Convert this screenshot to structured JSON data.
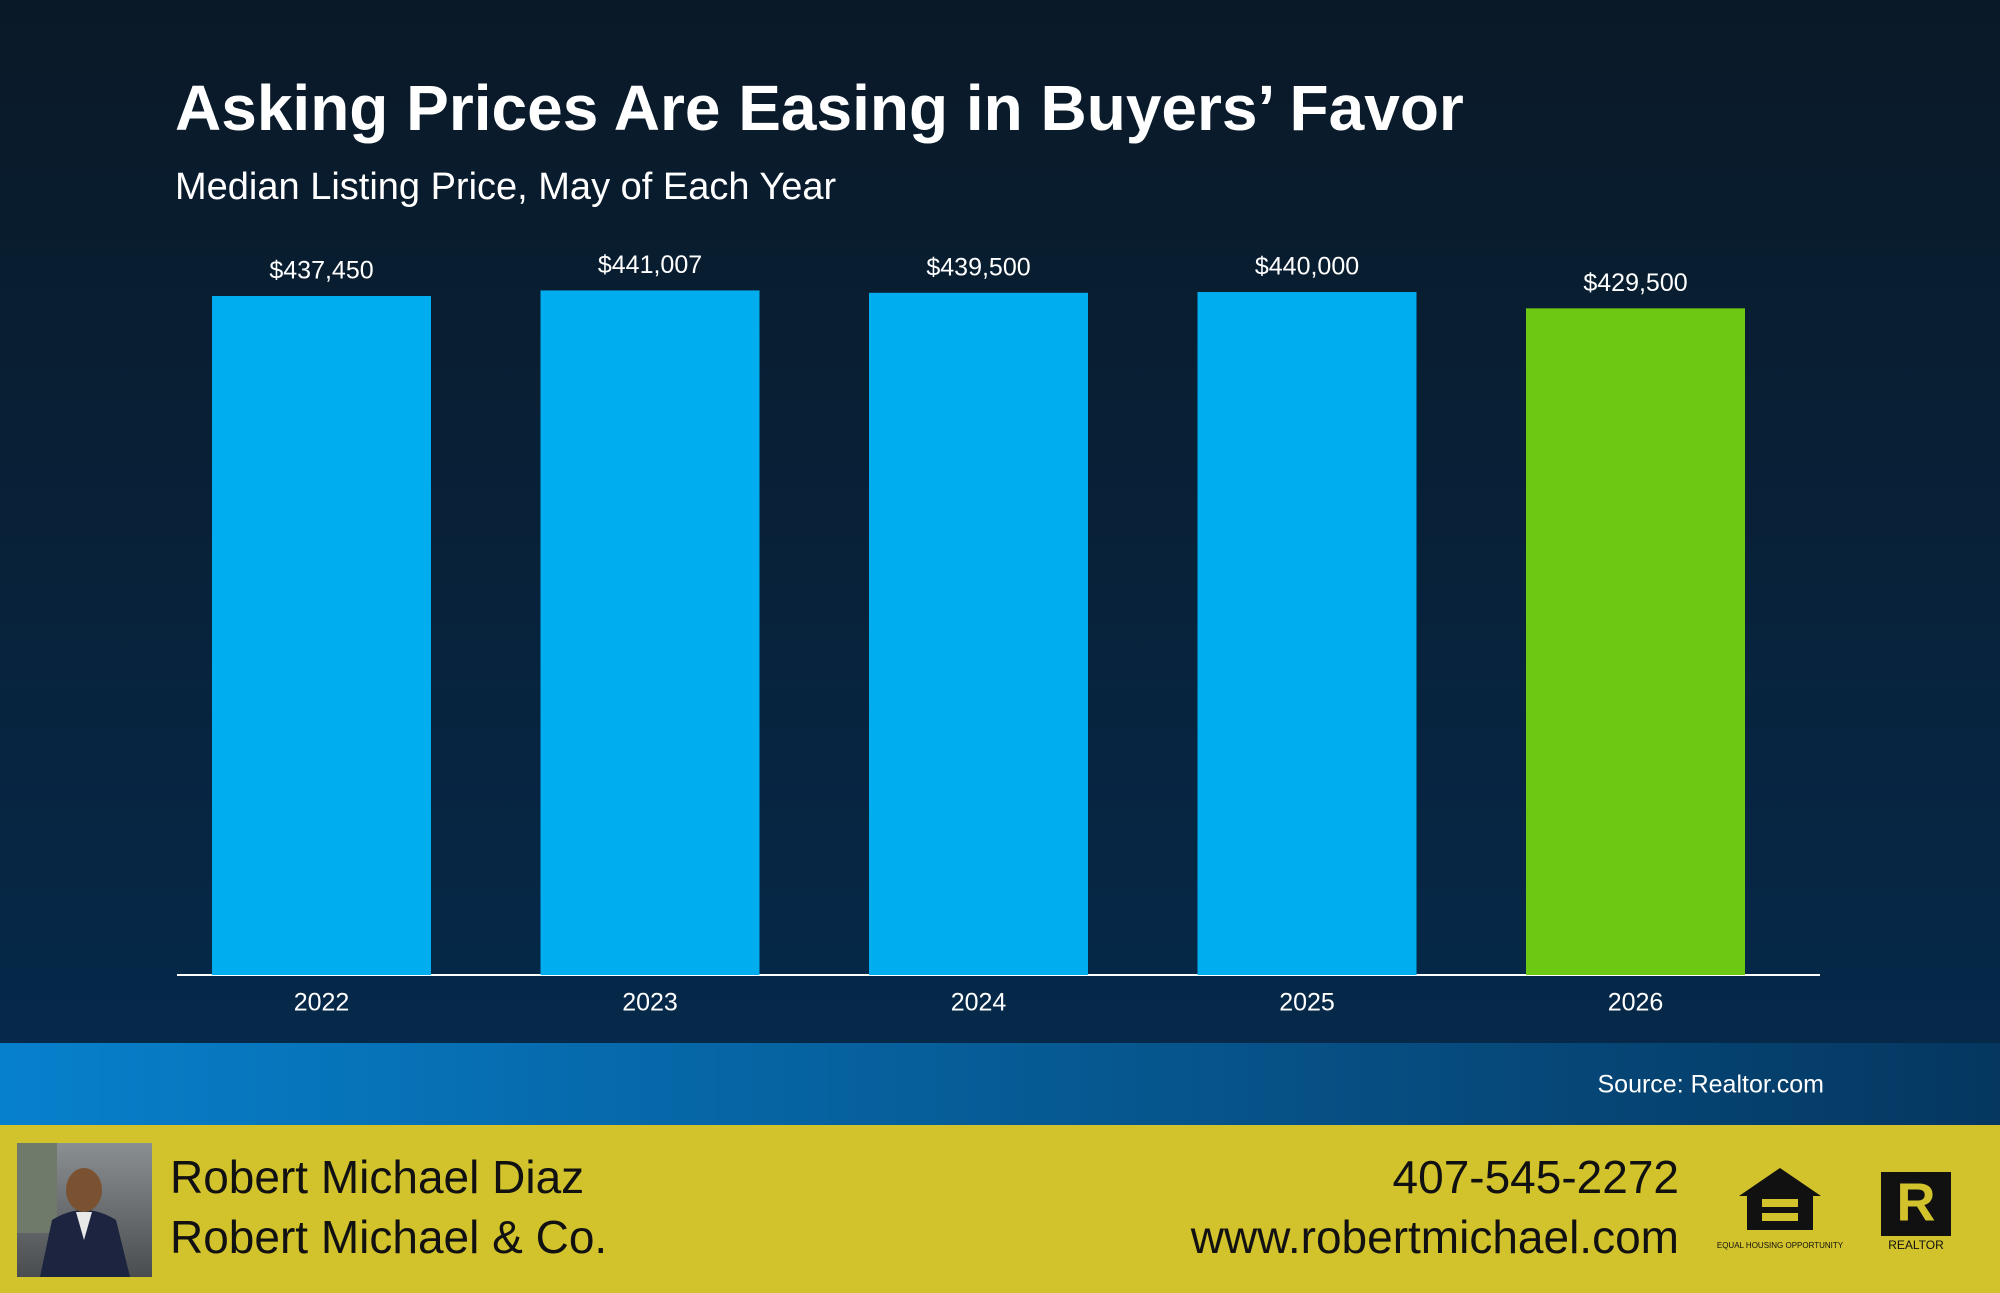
{
  "chart_data": {
    "type": "bar",
    "title": "Asking Prices Are Easing in Buyers’ Favor",
    "subtitle": "Median Listing Price, May of Each Year",
    "categories": [
      "2022",
      "2023",
      "2024",
      "2025",
      "2026"
    ],
    "values": [
      437450,
      441007,
      439500,
      440000,
      429500
    ],
    "value_labels": [
      "$437,450",
      "$441,007",
      "$439,500",
      "$440,000",
      "$429,500"
    ],
    "colors": [
      "#00adef",
      "#00adef",
      "#00adef",
      "#00adef",
      "#6cc812"
    ],
    "ylim": [
      0,
      450000
    ],
    "source": "Source: Realtor.com"
  },
  "footer": {
    "name": "Robert Michael Diaz",
    "company": "Robert Michael & Co.",
    "phone": "407-545-2272",
    "website": "www.robertmichael.com",
    "equal_housing": "EQUAL HOUSING OPPORTUNITY",
    "realtor": "REALTOR"
  }
}
